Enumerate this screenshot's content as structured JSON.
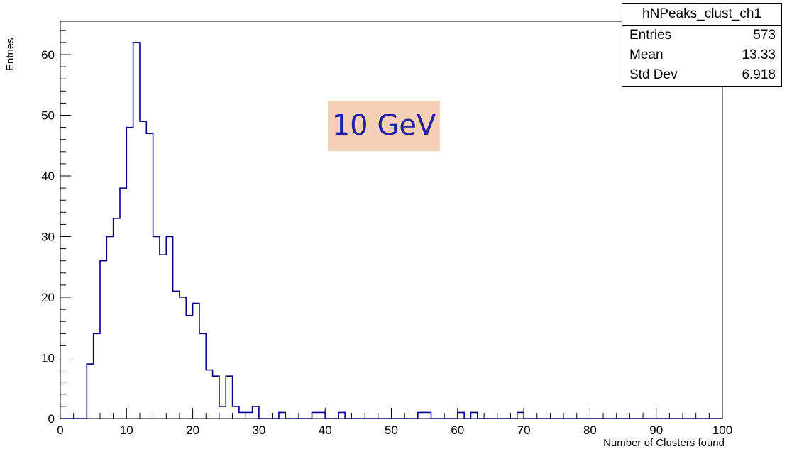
{
  "chart_data": {
    "type": "bar",
    "histogram_name": "hNPeaks_clust_ch1",
    "xlabel": "Number of Clusters found",
    "ylabel": "Entries",
    "xlim": [
      0,
      100
    ],
    "ylim": [
      0,
      65.5
    ],
    "bin_width": 1,
    "x_ticks": [
      0,
      10,
      20,
      30,
      40,
      50,
      60,
      70,
      80,
      90,
      100
    ],
    "y_ticks": [
      0,
      10,
      20,
      30,
      40,
      50,
      60
    ],
    "bins": [
      {
        "x": 4,
        "value": 9
      },
      {
        "x": 5,
        "value": 14
      },
      {
        "x": 6,
        "value": 26
      },
      {
        "x": 7,
        "value": 30
      },
      {
        "x": 8,
        "value": 33
      },
      {
        "x": 9,
        "value": 38
      },
      {
        "x": 10,
        "value": 48
      },
      {
        "x": 11,
        "value": 62
      },
      {
        "x": 12,
        "value": 49
      },
      {
        "x": 13,
        "value": 47
      },
      {
        "x": 14,
        "value": 30
      },
      {
        "x": 15,
        "value": 27
      },
      {
        "x": 16,
        "value": 30
      },
      {
        "x": 17,
        "value": 21
      },
      {
        "x": 18,
        "value": 20
      },
      {
        "x": 19,
        "value": 17
      },
      {
        "x": 20,
        "value": 19
      },
      {
        "x": 21,
        "value": 14
      },
      {
        "x": 22,
        "value": 8
      },
      {
        "x": 23,
        "value": 7
      },
      {
        "x": 24,
        "value": 2
      },
      {
        "x": 25,
        "value": 7
      },
      {
        "x": 26,
        "value": 2
      },
      {
        "x": 27,
        "value": 1
      },
      {
        "x": 28,
        "value": 1
      },
      {
        "x": 29,
        "value": 2
      },
      {
        "x": 30,
        "value": 0
      },
      {
        "x": 33,
        "value": 1
      },
      {
        "x": 38,
        "value": 1
      },
      {
        "x": 39,
        "value": 1
      },
      {
        "x": 42,
        "value": 1
      },
      {
        "x": 54,
        "value": 1
      },
      {
        "x": 55,
        "value": 1
      },
      {
        "x": 60,
        "value": 1
      },
      {
        "x": 62,
        "value": 1
      },
      {
        "x": 69,
        "value": 1
      }
    ],
    "annotation": "10 GeV",
    "color": "#00008b"
  },
  "stats": {
    "title": "hNPeaks_clust_ch1",
    "rows": [
      {
        "label": "Entries",
        "value": "573"
      },
      {
        "label": "Mean",
        "value": "13.33"
      },
      {
        "label": "Std Dev",
        "value": "6.918"
      }
    ]
  }
}
